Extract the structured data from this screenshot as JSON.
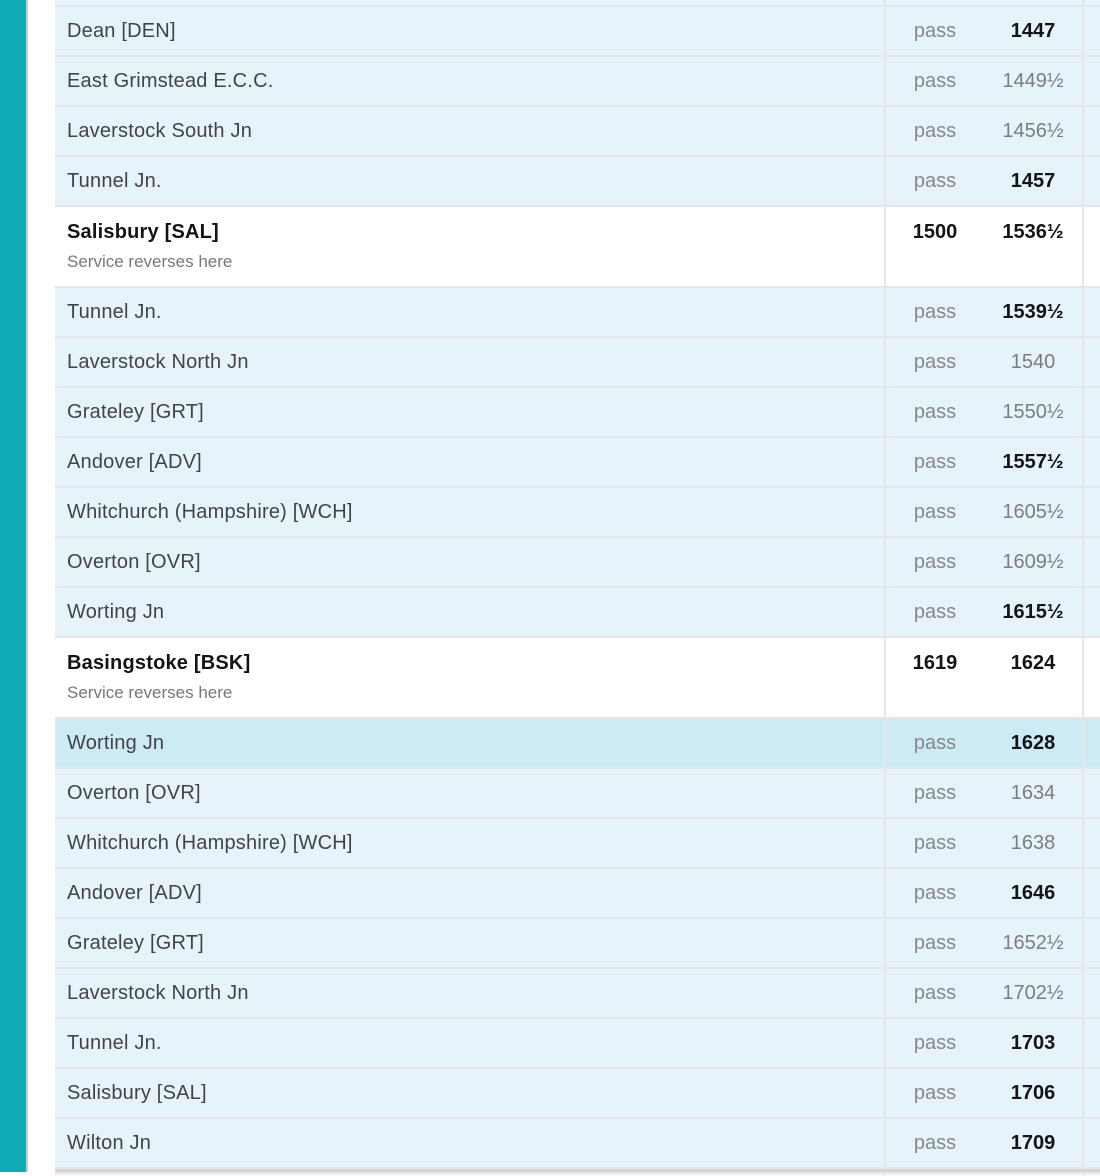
{
  "theme": {
    "accent_bar_color": "#10a9b6",
    "pass_row_color": "#e6f3fa",
    "highlight_row_color": "#cdebf4",
    "reversal_row_color": "#ffffff",
    "separator_color": "#e6e5e8",
    "emphasized_time_color": "#141418",
    "muted_time_color": "#7c7c81",
    "station_name_color": "#434347"
  },
  "schedule": {
    "rows": [
      {
        "variant": "partial-top"
      },
      {
        "variant": "normal",
        "station": "Dean [DEN]",
        "plan": "pass",
        "time": "1447",
        "time_emphasis": "strong"
      },
      {
        "variant": "normal",
        "station": "East Grimstead E.C.C.",
        "plan": "pass",
        "time": "1449½",
        "time_emphasis": "muted"
      },
      {
        "variant": "normal",
        "station": "Laverstock South Jn",
        "plan": "pass",
        "time": "1456½",
        "time_emphasis": "muted"
      },
      {
        "variant": "normal",
        "station": "Tunnel Jn.",
        "plan": "pass",
        "time": "1457",
        "time_emphasis": "strong"
      },
      {
        "variant": "reversal",
        "station": "Salisbury [SAL]",
        "note": "Service reverses here",
        "plan": "1500",
        "plan_emphasis": "strong",
        "time": "1536½",
        "time_emphasis": "strong"
      },
      {
        "variant": "normal",
        "station": "Tunnel Jn.",
        "plan": "pass",
        "time": "1539½",
        "time_emphasis": "strong"
      },
      {
        "variant": "normal",
        "station": "Laverstock North Jn",
        "plan": "pass",
        "time": "1540",
        "time_emphasis": "muted"
      },
      {
        "variant": "normal",
        "station": "Grateley [GRT]",
        "plan": "pass",
        "time": "1550½",
        "time_emphasis": "muted"
      },
      {
        "variant": "normal",
        "station": "Andover [ADV]",
        "plan": "pass",
        "time": "1557½",
        "time_emphasis": "strong"
      },
      {
        "variant": "normal",
        "station": "Whitchurch (Hampshire) [WCH]",
        "plan": "pass",
        "time": "1605½",
        "time_emphasis": "muted"
      },
      {
        "variant": "normal",
        "station": "Overton [OVR]",
        "plan": "pass",
        "time": "1609½",
        "time_emphasis": "muted"
      },
      {
        "variant": "normal",
        "station": "Worting Jn",
        "plan": "pass",
        "time": "1615½",
        "time_emphasis": "strong"
      },
      {
        "variant": "reversal",
        "station": "Basingstoke [BSK]",
        "note": "Service reverses here",
        "plan": "1619",
        "plan_emphasis": "strong",
        "time": "1624",
        "time_emphasis": "strong"
      },
      {
        "variant": "highlight",
        "station": "Worting Jn",
        "plan": "pass",
        "time": "1628",
        "time_emphasis": "strong"
      },
      {
        "variant": "normal",
        "station": "Overton [OVR]",
        "plan": "pass",
        "time": "1634",
        "time_emphasis": "muted"
      },
      {
        "variant": "normal",
        "station": "Whitchurch (Hampshire) [WCH]",
        "plan": "pass",
        "time": "1638",
        "time_emphasis": "muted"
      },
      {
        "variant": "normal",
        "station": "Andover [ADV]",
        "plan": "pass",
        "time": "1646",
        "time_emphasis": "strong"
      },
      {
        "variant": "normal",
        "station": "Grateley [GRT]",
        "plan": "pass",
        "time": "1652½",
        "time_emphasis": "muted"
      },
      {
        "variant": "normal",
        "station": "Laverstock North Jn",
        "plan": "pass",
        "time": "1702½",
        "time_emphasis": "muted"
      },
      {
        "variant": "normal",
        "station": "Tunnel Jn.",
        "plan": "pass",
        "time": "1703",
        "time_emphasis": "strong"
      },
      {
        "variant": "normal",
        "station": "Salisbury [SAL]",
        "plan": "pass",
        "time": "1706",
        "time_emphasis": "strong"
      },
      {
        "variant": "normal",
        "station": "Wilton Jn",
        "plan": "pass",
        "time": "1709",
        "time_emphasis": "strong"
      },
      {
        "variant": "partial-bottom"
      }
    ]
  }
}
